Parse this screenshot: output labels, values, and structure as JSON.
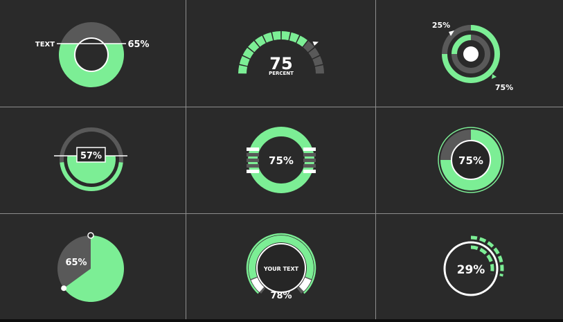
{
  "colors": {
    "background": "#2a2a2a",
    "grid": "#8e8e8e",
    "accent": "#7cee95",
    "gray": "#595959",
    "white": "#ffffff",
    "dark": "#262626"
  },
  "widgets": {
    "w1": {
      "label": "TEXT",
      "value": "65%",
      "fraction": 0.65
    },
    "w2": {
      "value": "75",
      "caption": "PERCENT",
      "fraction": 0.75
    },
    "w3": {
      "label_gray": "25%",
      "label_green": "75%",
      "fraction": 0.75
    },
    "w4": {
      "value": "57%",
      "fraction": 0.57
    },
    "w5": {
      "value": "75%",
      "fraction": 0.75
    },
    "w6": {
      "value": "75%",
      "fraction": 0.75
    },
    "w7": {
      "value": "65%",
      "fraction": 0.65
    },
    "w8": {
      "label": "YOUR TEXT",
      "value": "78%",
      "fraction": 0.78
    },
    "w9": {
      "value": "29%",
      "fraction": 0.29
    }
  }
}
